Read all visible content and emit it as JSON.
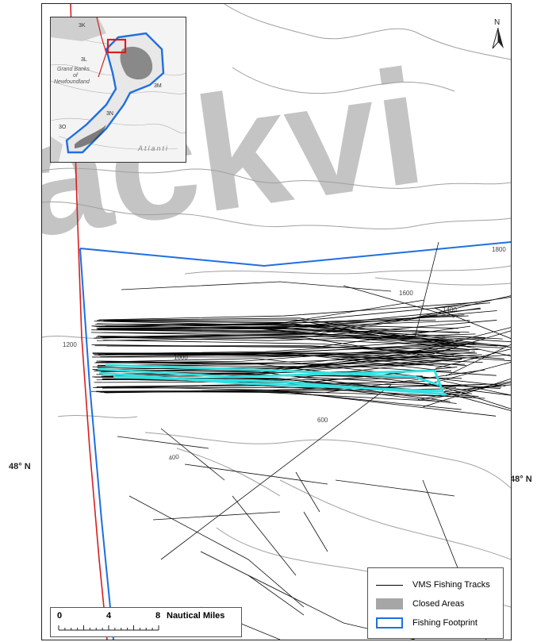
{
  "latitude_label_left": "48° N",
  "latitude_label_right": "48° N",
  "watermark": "ackvi",
  "north_arrow": {
    "letter": "N",
    "icon": "north-arrow-icon"
  },
  "contours": [
    "1800",
    "1600",
    "1400",
    "1200",
    "1000",
    "600",
    "400"
  ],
  "inset": {
    "zones": [
      "3K",
      "3L",
      "3M",
      "3O",
      "3N"
    ],
    "bank_label_lines": [
      "Grand Banks",
      "of",
      "Newfoundland"
    ],
    "ocean_label": "Atlanti"
  },
  "legend": {
    "items": [
      {
        "label": "VMS Fishing Tracks",
        "symbol": "line",
        "color": "#000000"
      },
      {
        "label": "Closed Areas",
        "symbol": "fill",
        "color": "#a6a6a6"
      },
      {
        "label": "Fishing Footprint",
        "symbol": "outline",
        "color": "#1f6fe0"
      }
    ]
  },
  "scale_bar": {
    "ticks": [
      "0",
      "4",
      "8"
    ],
    "unit": "Nautical Miles"
  },
  "colors": {
    "footprint": "#1f6fe0",
    "boundary_red": "#d42020",
    "tracks": "#000000",
    "closed_tracks_highlight": "#34e0e0",
    "contour": "#9a9a9a",
    "watermark": "#bdbdbd"
  }
}
